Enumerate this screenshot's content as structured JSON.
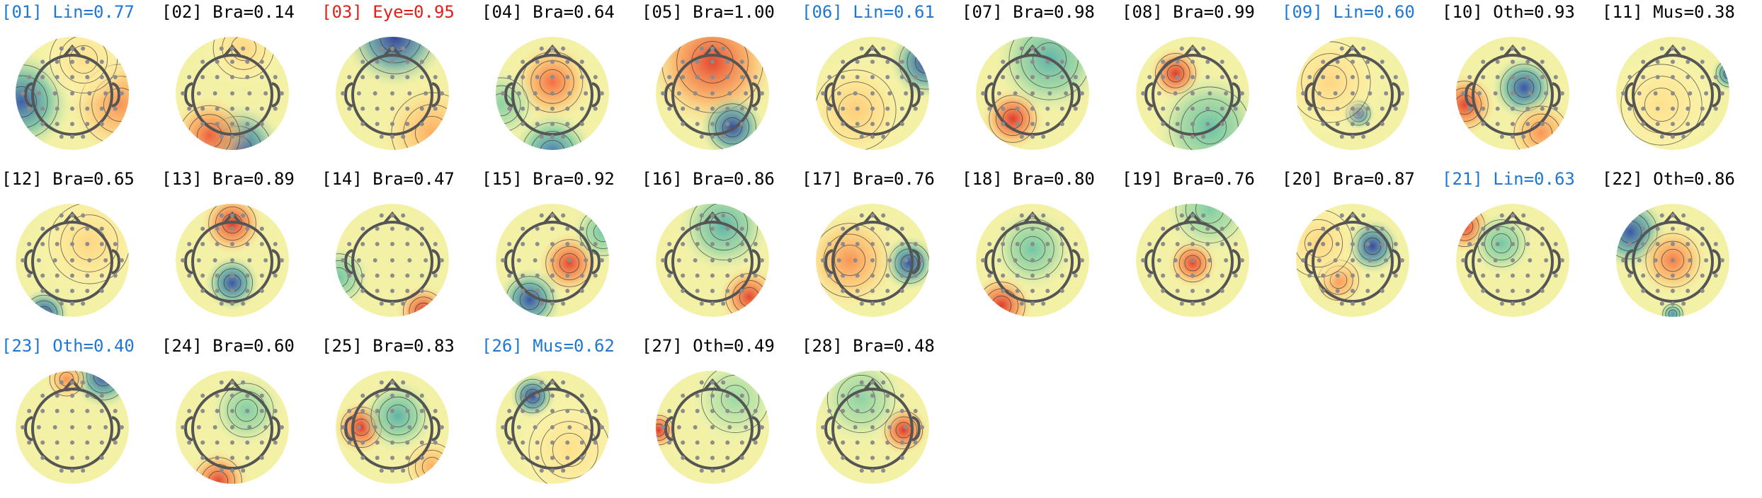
{
  "colors": {
    "black": "#000000",
    "blue": "#1f77d4",
    "red": "#e0201b"
  },
  "components": [
    {
      "num": "[01]",
      "score": "Lin=0.77",
      "color": "blue",
      "blobs": [
        {
          "v": -0.8,
          "dx": -0.9,
          "dy": 0.15,
          "r": 0.55
        },
        {
          "v": 0.6,
          "dx": 0.85,
          "dy": 0.2,
          "r": 0.6
        },
        {
          "v": 0.25,
          "dx": 0.2,
          "dy": -0.6,
          "r": 0.5
        }
      ]
    },
    {
      "num": "[02]",
      "score": "Bra=0.14",
      "color": "black",
      "blobs": [
        {
          "v": -0.9,
          "dx": 0.1,
          "dy": 1.0,
          "r": 0.5
        },
        {
          "v": 0.8,
          "dx": -0.4,
          "dy": 0.75,
          "r": 0.45
        },
        {
          "v": 0.3,
          "dx": 0.2,
          "dy": -0.8,
          "r": 0.45
        }
      ]
    },
    {
      "num": "[03]",
      "score": "Eye=0.95",
      "color": "red",
      "blobs": [
        {
          "v": -0.95,
          "dx": 0.05,
          "dy": -1.0,
          "r": 0.55
        },
        {
          "v": 0.5,
          "dx": 0.7,
          "dy": 0.7,
          "r": 0.6
        }
      ]
    },
    {
      "num": "[04]",
      "score": "Bra=0.64",
      "color": "black",
      "blobs": [
        {
          "v": 0.75,
          "dx": 0.0,
          "dy": -0.2,
          "r": 0.45
        },
        {
          "v": -0.7,
          "dx": 0.0,
          "dy": 1.05,
          "r": 0.45
        },
        {
          "v": -0.3,
          "dx": -0.9,
          "dy": 0.2,
          "r": 0.4
        }
      ]
    },
    {
      "num": "[05]",
      "score": "Bra=1.00",
      "color": "black",
      "blobs": [
        {
          "v": 0.9,
          "dx": 0.0,
          "dy": -0.55,
          "r": 0.75
        },
        {
          "v": -0.9,
          "dx": 0.35,
          "dy": 0.6,
          "r": 0.35
        }
      ]
    },
    {
      "num": "[06]",
      "score": "Lin=0.61",
      "color": "blue",
      "blobs": [
        {
          "v": -0.9,
          "dx": 0.95,
          "dy": -0.55,
          "r": 0.4
        },
        {
          "v": 0.35,
          "dx": -0.3,
          "dy": 0.3,
          "r": 0.6
        }
      ]
    },
    {
      "num": "[07]",
      "score": "Bra=0.98",
      "color": "black",
      "blobs": [
        {
          "v": 0.95,
          "dx": -0.35,
          "dy": 0.45,
          "r": 0.35
        },
        {
          "v": -0.5,
          "dx": 0.3,
          "dy": -0.6,
          "r": 0.6
        }
      ]
    },
    {
      "num": "[08]",
      "score": "Bra=0.99",
      "color": "black",
      "blobs": [
        {
          "v": 0.95,
          "dx": -0.3,
          "dy": -0.35,
          "r": 0.3
        },
        {
          "v": -0.45,
          "dx": 0.3,
          "dy": 0.6,
          "r": 0.6
        }
      ]
    },
    {
      "num": "[09]",
      "score": "Lin=0.60",
      "color": "blue",
      "blobs": [
        {
          "v": -0.9,
          "dx": 0.1,
          "dy": 0.35,
          "r": 0.18
        },
        {
          "v": 0.3,
          "dx": -0.4,
          "dy": -0.2,
          "r": 0.6
        }
      ]
    },
    {
      "num": "[10]",
      "score": "Oth=0.93",
      "color": "black",
      "blobs": [
        {
          "v": -0.85,
          "dx": 0.2,
          "dy": -0.1,
          "r": 0.35
        },
        {
          "v": 0.9,
          "dx": -0.85,
          "dy": 0.2,
          "r": 0.35
        },
        {
          "v": 0.6,
          "dx": 0.5,
          "dy": 0.7,
          "r": 0.4
        }
      ]
    },
    {
      "num": "[11]",
      "score": "Mus=0.38",
      "color": "black",
      "blobs": [
        {
          "v": -0.8,
          "dx": 1.0,
          "dy": -0.35,
          "r": 0.2
        },
        {
          "v": 0.25,
          "dx": -0.2,
          "dy": 0.2,
          "r": 0.6
        }
      ]
    },
    {
      "num": "[12]",
      "score": "Bra=0.65",
      "color": "black",
      "blobs": [
        {
          "v": -0.9,
          "dx": -0.5,
          "dy": 0.95,
          "r": 0.28
        },
        {
          "v": 0.3,
          "dx": 0.3,
          "dy": -0.3,
          "r": 0.6
        }
      ]
    },
    {
      "num": "[13]",
      "score": "Bra=0.89",
      "color": "black",
      "blobs": [
        {
          "v": 0.95,
          "dx": 0.0,
          "dy": -0.65,
          "r": 0.35
        },
        {
          "v": -0.85,
          "dx": 0.0,
          "dy": 0.4,
          "r": 0.3
        }
      ]
    },
    {
      "num": "[14]",
      "score": "Bra=0.47",
      "color": "black",
      "blobs": [
        {
          "v": 0.95,
          "dx": 0.55,
          "dy": 0.9,
          "r": 0.3
        },
        {
          "v": -0.4,
          "dx": -0.95,
          "dy": 0.3,
          "r": 0.35
        }
      ]
    },
    {
      "num": "[15]",
      "score": "Bra=0.92",
      "color": "black",
      "blobs": [
        {
          "v": 0.9,
          "dx": 0.3,
          "dy": 0.05,
          "r": 0.35
        },
        {
          "v": -0.85,
          "dx": -0.4,
          "dy": 0.7,
          "r": 0.35
        },
        {
          "v": -0.4,
          "dx": 0.9,
          "dy": -0.5,
          "r": 0.35
        }
      ]
    },
    {
      "num": "[16]",
      "score": "Bra=0.86",
      "color": "black",
      "blobs": [
        {
          "v": 0.9,
          "dx": 0.65,
          "dy": 0.65,
          "r": 0.35
        },
        {
          "v": -0.5,
          "dx": 0.2,
          "dy": -0.6,
          "r": 0.5
        }
      ]
    },
    {
      "num": "[17]",
      "score": "Bra=0.76",
      "color": "black",
      "blobs": [
        {
          "v": -0.85,
          "dx": 0.65,
          "dy": 0.05,
          "r": 0.3
        },
        {
          "v": 0.6,
          "dx": -0.4,
          "dy": 0.0,
          "r": 0.55
        }
      ]
    },
    {
      "num": "[18]",
      "score": "Bra=0.80",
      "color": "black",
      "blobs": [
        {
          "v": 0.95,
          "dx": -0.55,
          "dy": 0.8,
          "r": 0.35
        },
        {
          "v": -0.4,
          "dx": 0.0,
          "dy": -0.2,
          "r": 0.45
        }
      ]
    },
    {
      "num": "[19]",
      "score": "Bra=0.76",
      "color": "black",
      "blobs": [
        {
          "v": 0.9,
          "dx": 0.0,
          "dy": 0.05,
          "r": 0.28
        },
        {
          "v": -0.35,
          "dx": 0.3,
          "dy": -0.9,
          "r": 0.5
        }
      ]
    },
    {
      "num": "[20]",
      "score": "Bra=0.87",
      "color": "black",
      "blobs": [
        {
          "v": -0.9,
          "dx": 0.35,
          "dy": -0.25,
          "r": 0.3
        },
        {
          "v": 0.6,
          "dx": -0.25,
          "dy": 0.35,
          "r": 0.3
        },
        {
          "v": 0.3,
          "dx": -0.6,
          "dy": -0.3,
          "r": 0.5
        }
      ]
    },
    {
      "num": "[21]",
      "score": "Lin=0.63",
      "color": "blue",
      "blobs": [
        {
          "v": 0.9,
          "dx": -0.85,
          "dy": -0.6,
          "r": 0.3
        },
        {
          "v": -0.4,
          "dx": -0.2,
          "dy": -0.3,
          "r": 0.35
        }
      ]
    },
    {
      "num": "[22]",
      "score": "Oth=0.86",
      "color": "black",
      "blobs": [
        {
          "v": -0.85,
          "dx": -0.75,
          "dy": -0.5,
          "r": 0.4
        },
        {
          "v": 0.7,
          "dx": 0.0,
          "dy": 0.0,
          "r": 0.4
        },
        {
          "v": -0.6,
          "dx": 0.0,
          "dy": 0.95,
          "r": 0.15
        }
      ]
    },
    {
      "num": "[23]",
      "score": "Oth=0.40",
      "color": "blue",
      "blobs": [
        {
          "v": -0.85,
          "dx": 0.55,
          "dy": -0.9,
          "r": 0.35
        },
        {
          "v": 0.6,
          "dx": -0.1,
          "dy": -0.85,
          "r": 0.25
        }
      ]
    },
    {
      "num": "[24]",
      "score": "Bra=0.60",
      "color": "black",
      "blobs": [
        {
          "v": 0.9,
          "dx": -0.25,
          "dy": 0.95,
          "r": 0.35
        },
        {
          "v": -0.35,
          "dx": 0.25,
          "dy": -0.3,
          "r": 0.4
        }
      ]
    },
    {
      "num": "[25]",
      "score": "Bra=0.83",
      "color": "black",
      "blobs": [
        {
          "v": 0.95,
          "dx": -0.55,
          "dy": 0.0,
          "r": 0.3
        },
        {
          "v": -0.5,
          "dx": 0.1,
          "dy": -0.2,
          "r": 0.4
        },
        {
          "v": 0.5,
          "dx": 0.7,
          "dy": 0.7,
          "r": 0.35
        }
      ]
    },
    {
      "num": "[26]",
      "score": "Mus=0.62",
      "color": "blue",
      "blobs": [
        {
          "v": -0.9,
          "dx": -0.35,
          "dy": -0.55,
          "r": 0.25
        },
        {
          "v": 0.25,
          "dx": 0.3,
          "dy": 0.4,
          "r": 0.6
        }
      ]
    },
    {
      "num": "[27]",
      "score": "Oth=0.49",
      "color": "black",
      "blobs": [
        {
          "v": 0.95,
          "dx": -0.95,
          "dy": 0.05,
          "r": 0.22
        },
        {
          "v": -0.25,
          "dx": 0.4,
          "dy": -0.5,
          "r": 0.5
        }
      ]
    },
    {
      "num": "[28]",
      "score": "Bra=0.48",
      "color": "black",
      "blobs": [
        {
          "v": 0.95,
          "dx": 0.55,
          "dy": 0.05,
          "r": 0.28
        },
        {
          "v": -0.3,
          "dx": -0.2,
          "dy": -0.5,
          "r": 0.5
        }
      ]
    }
  ]
}
